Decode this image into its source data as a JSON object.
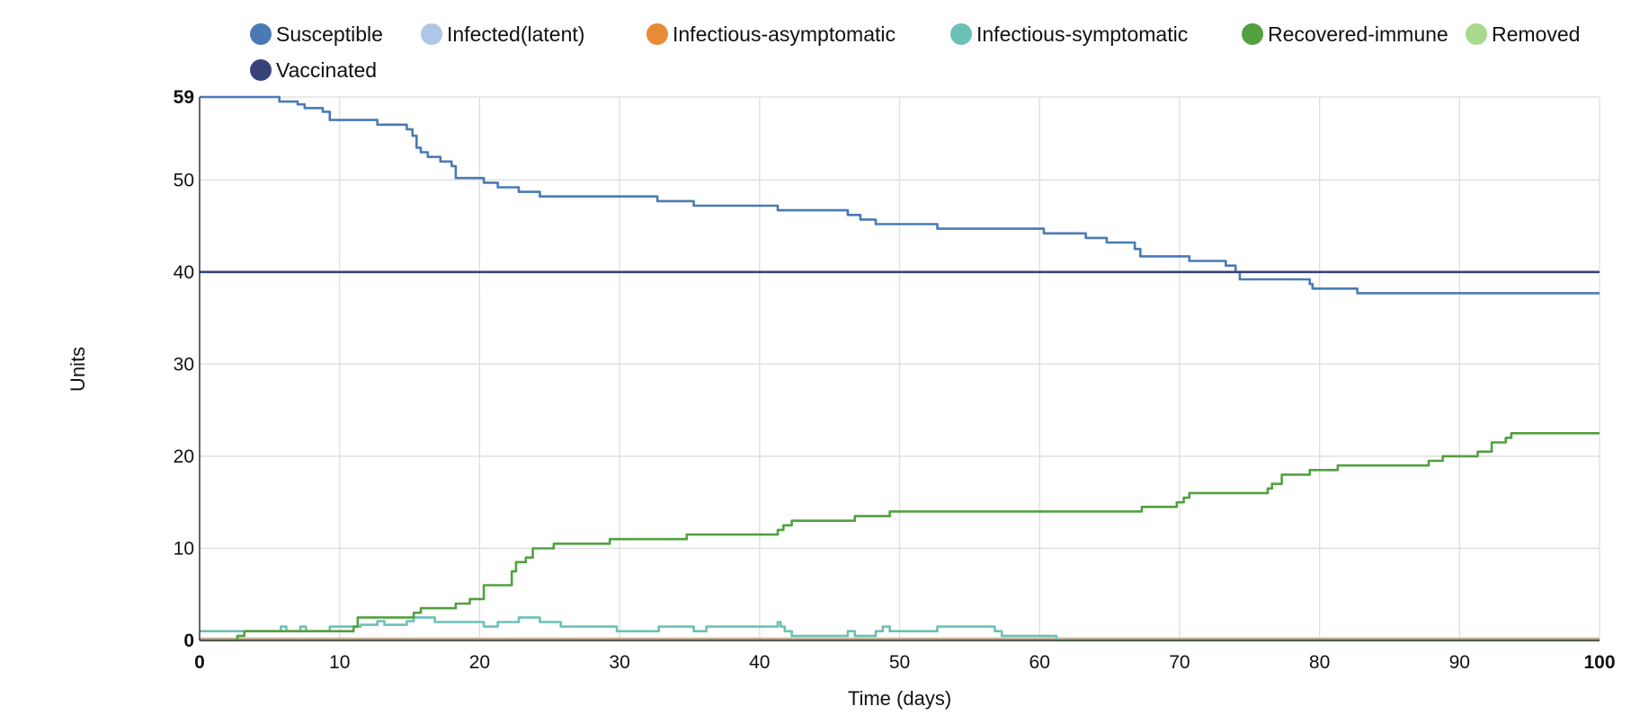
{
  "chart_data": {
    "type": "line",
    "title": "",
    "xlabel": "Time (days)",
    "ylabel": "Units",
    "xlim": [
      0,
      100
    ],
    "ylim": [
      0,
      59
    ],
    "x_ticks": [
      0,
      10,
      20,
      30,
      40,
      50,
      60,
      70,
      80,
      90,
      100
    ],
    "y_ticks": [
      0,
      10,
      20,
      30,
      40,
      50,
      59
    ],
    "bold_x_ticks": [
      0,
      100
    ],
    "bold_y_ticks": [
      0,
      59
    ],
    "grid": true,
    "legend_position": "top",
    "series": [
      {
        "name": "Susceptible",
        "color": "#4a7ab5",
        "step": true,
        "points": [
          [
            0,
            59
          ],
          [
            5.7,
            59
          ],
          [
            5.7,
            58.5
          ],
          [
            7,
            58.5
          ],
          [
            7,
            58.2
          ],
          [
            7.5,
            58.2
          ],
          [
            7.5,
            57.8
          ],
          [
            8.8,
            57.8
          ],
          [
            8.8,
            57.4
          ],
          [
            9.3,
            57.4
          ],
          [
            9.3,
            56.5
          ],
          [
            12.7,
            56.5
          ],
          [
            12.7,
            56
          ],
          [
            14.8,
            56
          ],
          [
            14.8,
            55.5
          ],
          [
            15.2,
            55.5
          ],
          [
            15.2,
            54.8
          ],
          [
            15.5,
            54.8
          ],
          [
            15.5,
            53.5
          ],
          [
            15.8,
            53.5
          ],
          [
            15.8,
            53
          ],
          [
            16.3,
            53
          ],
          [
            16.3,
            52.5
          ],
          [
            17.2,
            52.5
          ],
          [
            17.2,
            52
          ],
          [
            18,
            52
          ],
          [
            18,
            51.5
          ],
          [
            18.3,
            51.5
          ],
          [
            18.3,
            50.2
          ],
          [
            20.3,
            50.2
          ],
          [
            20.3,
            49.7
          ],
          [
            21.3,
            49.7
          ],
          [
            21.3,
            49.2
          ],
          [
            22.8,
            49.2
          ],
          [
            22.8,
            48.7
          ],
          [
            24.3,
            48.7
          ],
          [
            24.3,
            48.2
          ],
          [
            32.7,
            48.2
          ],
          [
            32.7,
            47.7
          ],
          [
            35.3,
            47.7
          ],
          [
            35.3,
            47.2
          ],
          [
            41.3,
            47.2
          ],
          [
            41.3,
            46.7
          ],
          [
            46.3,
            46.7
          ],
          [
            46.3,
            46.2
          ],
          [
            47.2,
            46.2
          ],
          [
            47.2,
            45.7
          ],
          [
            48.3,
            45.7
          ],
          [
            48.3,
            45.2
          ],
          [
            52.7,
            45.2
          ],
          [
            52.7,
            44.7
          ],
          [
            60.3,
            44.7
          ],
          [
            60.3,
            44.2
          ],
          [
            63.3,
            44.2
          ],
          [
            63.3,
            43.7
          ],
          [
            64.8,
            43.7
          ],
          [
            64.8,
            43.2
          ],
          [
            66.8,
            43.2
          ],
          [
            66.8,
            42.5
          ],
          [
            67.2,
            42.5
          ],
          [
            67.2,
            41.7
          ],
          [
            70.7,
            41.7
          ],
          [
            70.7,
            41.2
          ],
          [
            73.3,
            41.2
          ],
          [
            73.3,
            40.7
          ],
          [
            74,
            40.7
          ],
          [
            74,
            40
          ],
          [
            74.3,
            40
          ],
          [
            74.3,
            39.2
          ],
          [
            79.3,
            39.2
          ],
          [
            79.3,
            38.7
          ],
          [
            79.5,
            38.7
          ],
          [
            79.5,
            38.2
          ],
          [
            82.7,
            38.2
          ],
          [
            82.7,
            37.7
          ],
          [
            100,
            37.7
          ]
        ]
      },
      {
        "name": "Infected(latent)",
        "color": "#aec7e8",
        "step": true,
        "points": [
          [
            0,
            0.2
          ],
          [
            100,
            0.2
          ]
        ]
      },
      {
        "name": "Infectious-asymptomatic",
        "color": "#e88a36",
        "step": true,
        "points": [
          [
            0,
            0.1
          ],
          [
            100,
            0.1
          ]
        ]
      },
      {
        "name": "Infectious-symptomatic",
        "color": "#6cc1b6",
        "step": true,
        "points": [
          [
            0,
            1
          ],
          [
            5.8,
            1
          ],
          [
            5.8,
            1.5
          ],
          [
            6.2,
            1.5
          ],
          [
            6.2,
            1
          ],
          [
            7.2,
            1
          ],
          [
            7.2,
            1.5
          ],
          [
            7.6,
            1.5
          ],
          [
            7.6,
            1
          ],
          [
            9.3,
            1
          ],
          [
            9.3,
            1.5
          ],
          [
            11.5,
            1.5
          ],
          [
            11.5,
            1.7
          ],
          [
            12.7,
            1.7
          ],
          [
            12.7,
            2.1
          ],
          [
            13.2,
            2.1
          ],
          [
            13.2,
            1.7
          ],
          [
            14.8,
            1.7
          ],
          [
            14.8,
            2.1
          ],
          [
            15.3,
            2.1
          ],
          [
            15.3,
            2.5
          ],
          [
            16.8,
            2.5
          ],
          [
            16.8,
            2
          ],
          [
            20.3,
            2
          ],
          [
            20.3,
            1.5
          ],
          [
            21.3,
            1.5
          ],
          [
            21.3,
            2
          ],
          [
            22.8,
            2
          ],
          [
            22.8,
            2.5
          ],
          [
            24.3,
            2.5
          ],
          [
            24.3,
            2
          ],
          [
            25.8,
            2
          ],
          [
            25.8,
            1.5
          ],
          [
            29.8,
            1.5
          ],
          [
            29.8,
            1
          ],
          [
            32.8,
            1
          ],
          [
            32.8,
            1.5
          ],
          [
            35.3,
            1.5
          ],
          [
            35.3,
            1
          ],
          [
            36.2,
            1
          ],
          [
            36.2,
            1.5
          ],
          [
            41.3,
            1.5
          ],
          [
            41.3,
            2
          ],
          [
            41.5,
            2
          ],
          [
            41.5,
            1.5
          ],
          [
            41.8,
            1.5
          ],
          [
            41.8,
            1
          ],
          [
            42.3,
            1
          ],
          [
            42.3,
            0.5
          ],
          [
            46.3,
            0.5
          ],
          [
            46.3,
            1
          ],
          [
            46.8,
            1
          ],
          [
            46.8,
            0.5
          ],
          [
            48.3,
            0.5
          ],
          [
            48.3,
            1
          ],
          [
            48.8,
            1
          ],
          [
            48.8,
            1.5
          ],
          [
            49.3,
            1.5
          ],
          [
            49.3,
            1
          ],
          [
            52.7,
            1
          ],
          [
            52.7,
            1.5
          ],
          [
            56.8,
            1.5
          ],
          [
            56.8,
            1
          ],
          [
            57.3,
            1
          ],
          [
            57.3,
            0.5
          ],
          [
            61.2,
            0.5
          ],
          [
            61.2,
            0
          ],
          [
            100,
            0
          ]
        ]
      },
      {
        "name": "Recovered-immune",
        "color": "#52a040",
        "step": true,
        "points": [
          [
            0,
            0
          ],
          [
            2.7,
            0
          ],
          [
            2.7,
            0.5
          ],
          [
            3.2,
            0.5
          ],
          [
            3.2,
            1
          ],
          [
            11,
            1
          ],
          [
            11,
            1.5
          ],
          [
            11.3,
            1.5
          ],
          [
            11.3,
            2.5
          ],
          [
            15.3,
            2.5
          ],
          [
            15.3,
            3
          ],
          [
            15.8,
            3
          ],
          [
            15.8,
            3.5
          ],
          [
            18.3,
            3.5
          ],
          [
            18.3,
            4
          ],
          [
            19.3,
            4
          ],
          [
            19.3,
            4.5
          ],
          [
            20.3,
            4.5
          ],
          [
            20.3,
            6
          ],
          [
            22.3,
            6
          ],
          [
            22.3,
            7.5
          ],
          [
            22.6,
            7.5
          ],
          [
            22.6,
            8.5
          ],
          [
            23.3,
            8.5
          ],
          [
            23.3,
            9
          ],
          [
            23.8,
            9
          ],
          [
            23.8,
            10
          ],
          [
            25.3,
            10
          ],
          [
            25.3,
            10.5
          ],
          [
            29.3,
            10.5
          ],
          [
            29.3,
            11
          ],
          [
            34.8,
            11
          ],
          [
            34.8,
            11.5
          ],
          [
            41.3,
            11.5
          ],
          [
            41.3,
            12
          ],
          [
            41.7,
            12
          ],
          [
            41.7,
            12.5
          ],
          [
            42.3,
            12.5
          ],
          [
            42.3,
            13
          ],
          [
            46.8,
            13
          ],
          [
            46.8,
            13.5
          ],
          [
            49.3,
            13.5
          ],
          [
            49.3,
            14
          ],
          [
            67.3,
            14
          ],
          [
            67.3,
            14.5
          ],
          [
            69.8,
            14.5
          ],
          [
            69.8,
            15
          ],
          [
            70.3,
            15
          ],
          [
            70.3,
            15.5
          ],
          [
            70.7,
            15.5
          ],
          [
            70.7,
            16
          ],
          [
            76.3,
            16
          ],
          [
            76.3,
            16.5
          ],
          [
            76.6,
            16.5
          ],
          [
            76.6,
            17
          ],
          [
            77.3,
            17
          ],
          [
            77.3,
            18
          ],
          [
            79.3,
            18
          ],
          [
            79.3,
            18.5
          ],
          [
            81.3,
            18.5
          ],
          [
            81.3,
            19
          ],
          [
            87.8,
            19
          ],
          [
            87.8,
            19.5
          ],
          [
            88.8,
            19.5
          ],
          [
            88.8,
            20
          ],
          [
            91.3,
            20
          ],
          [
            91.3,
            20.5
          ],
          [
            92.3,
            20.5
          ],
          [
            92.3,
            21.5
          ],
          [
            93.3,
            21.5
          ],
          [
            93.3,
            22
          ],
          [
            93.7,
            22
          ],
          [
            93.7,
            22.5
          ],
          [
            100,
            22.5
          ]
        ]
      },
      {
        "name": "Removed",
        "color": "#a8d98e",
        "step": true,
        "points": [
          [
            0,
            0
          ],
          [
            100,
            0
          ]
        ]
      },
      {
        "name": "Vaccinated",
        "color": "#374278",
        "step": true,
        "points": [
          [
            0,
            40
          ],
          [
            100,
            40
          ]
        ]
      }
    ]
  }
}
